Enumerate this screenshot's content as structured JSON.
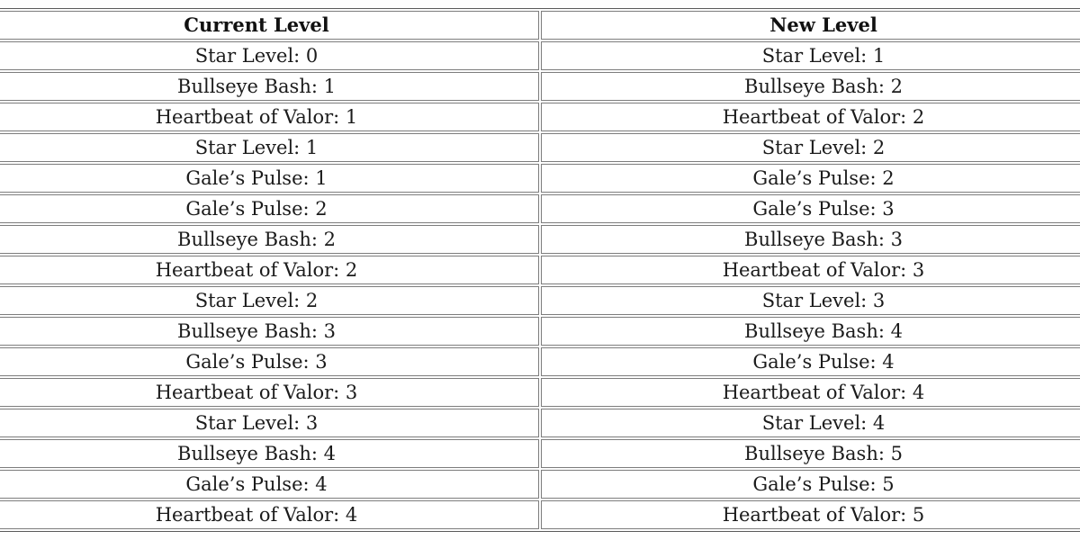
{
  "table": {
    "columns": [
      {
        "header": "Current Level"
      },
      {
        "header": "New Level"
      }
    ],
    "rows": [
      {
        "current": "Star Level: 0",
        "new": "Star Level: 1"
      },
      {
        "current": "Bullseye Bash: 1",
        "new": "Bullseye Bash: 2"
      },
      {
        "current": "Heartbeat of Valor: 1",
        "new": "Heartbeat of Valor: 2"
      },
      {
        "current": "Star Level: 1",
        "new": "Star Level: 2"
      },
      {
        "current": "Gale’s Pulse: 1",
        "new": "Gale’s Pulse: 2"
      },
      {
        "current": "Gale’s Pulse: 2",
        "new": "Gale’s Pulse: 3"
      },
      {
        "current": "Bullseye Bash: 2",
        "new": "Bullseye Bash: 3"
      },
      {
        "current": "Heartbeat of Valor: 2",
        "new": "Heartbeat of Valor: 3"
      },
      {
        "current": "Star Level: 2",
        "new": "Star Level: 3"
      },
      {
        "current": "Bullseye Bash: 3",
        "new": "Bullseye Bash: 4"
      },
      {
        "current": "Gale’s Pulse: 3",
        "new": "Gale’s Pulse: 4"
      },
      {
        "current": "Heartbeat of Valor: 3",
        "new": "Heartbeat of Valor: 4"
      },
      {
        "current": "Star Level: 3",
        "new": "Star Level: 4"
      },
      {
        "current": "Bullseye Bash: 4",
        "new": "Bullseye Bash: 5"
      },
      {
        "current": "Gale’s Pulse: 4",
        "new": "Gale’s Pulse: 5"
      },
      {
        "current": "Heartbeat of Valor: 4",
        "new": "Heartbeat of Valor: 5"
      }
    ]
  },
  "colors": {
    "background": "#ffffff",
    "cell_background": "#ffffff",
    "cell_border": "#7d7d7d",
    "outer_border": "#595959",
    "text": "#1b1b1b"
  }
}
